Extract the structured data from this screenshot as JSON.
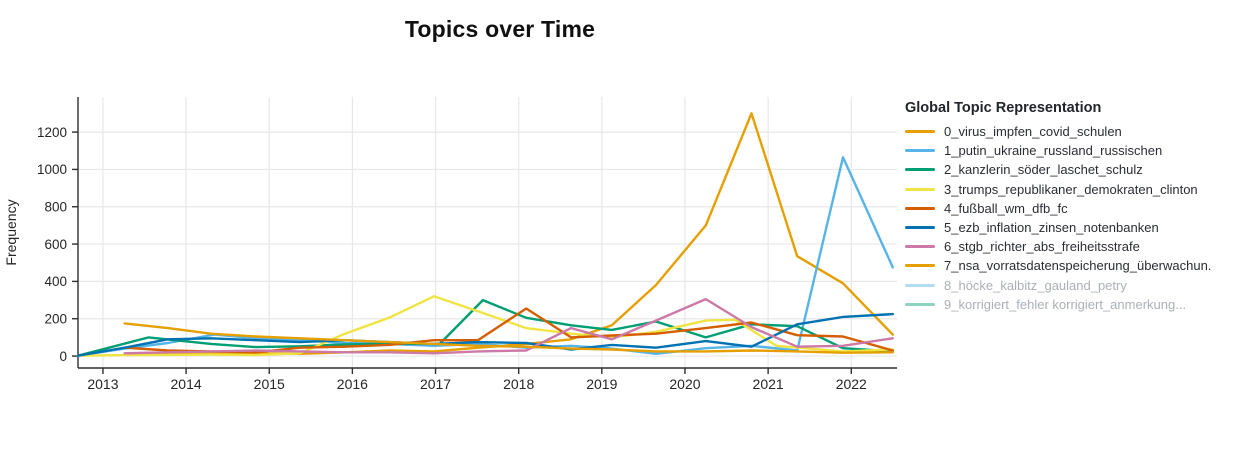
{
  "title": "Topics over Time",
  "legend": {
    "title": "Global Topic Representation"
  },
  "colors": {
    "grid": "#e7e7e7",
    "axis": "#2f2f2f",
    "tick_label": "#262626",
    "muted_text": "#abb0b6",
    "palette": [
      "#E69F00",
      "#56B4E9",
      "#009E73",
      "#F0E442",
      "#D55E00",
      "#0072B2",
      "#CC79A7"
    ]
  },
  "chart_data": {
    "type": "line",
    "title": "Topics over Time",
    "xlabel": "",
    "ylabel": "Frequency",
    "x_ticks": [
      2013,
      2014,
      2015,
      2016,
      2017,
      2018,
      2019,
      2020,
      2021,
      2022
    ],
    "y_ticks": [
      0,
      200,
      400,
      600,
      800,
      1000,
      1200
    ],
    "x_range": [
      2012.7,
      2022.55
    ],
    "y_range": [
      -64,
      1388
    ],
    "grid": true,
    "legend_position": "right",
    "series": [
      {
        "name": "0_virus_impfen_covid_schulen",
        "color": "#E69F00",
        "visible": true,
        "points": [
          [
            2013.26,
            10
          ],
          [
            2013.78,
            15
          ],
          [
            2014.3,
            20
          ],
          [
            2014.84,
            15
          ],
          [
            2015.37,
            12
          ],
          [
            2015.91,
            20
          ],
          [
            2016.44,
            30
          ],
          [
            2016.98,
            25
          ],
          [
            2017.51,
            45
          ],
          [
            2018.09,
            65
          ],
          [
            2018.63,
            90
          ],
          [
            2019.12,
            165
          ],
          [
            2019.65,
            380
          ],
          [
            2020.25,
            700
          ],
          [
            2020.8,
            1300
          ],
          [
            2021.35,
            535
          ],
          [
            2021.9,
            390
          ],
          [
            2022.5,
            115
          ]
        ]
      },
      {
        "name": "1_putin_ukraine_russland_russischen",
        "color": "#56B4E9",
        "visible": true,
        "points": [
          [
            2012.7,
            2
          ],
          [
            2013.26,
            40
          ],
          [
            2013.78,
            70
          ],
          [
            2014.34,
            115
          ],
          [
            2014.84,
            95
          ],
          [
            2015.37,
            85
          ],
          [
            2015.91,
            70
          ],
          [
            2016.44,
            65
          ],
          [
            2016.98,
            55
          ],
          [
            2017.51,
            65
          ],
          [
            2018.09,
            45
          ],
          [
            2018.63,
            55
          ],
          [
            2019.12,
            40
          ],
          [
            2019.65,
            12
          ],
          [
            2020.25,
            42
          ],
          [
            2020.8,
            55
          ],
          [
            2021.35,
            30
          ],
          [
            2021.9,
            1065
          ],
          [
            2022.5,
            475
          ]
        ]
      },
      {
        "name": "2_kanzlerin_söder_laschet_schulz",
        "color": "#009E73",
        "visible": true,
        "points": [
          [
            2012.7,
            2
          ],
          [
            2013.55,
            100
          ],
          [
            2014.3,
            65
          ],
          [
            2014.84,
            48
          ],
          [
            2015.37,
            52
          ],
          [
            2015.91,
            62
          ],
          [
            2016.44,
            66
          ],
          [
            2017.05,
            65
          ],
          [
            2017.57,
            300
          ],
          [
            2018.09,
            205
          ],
          [
            2018.63,
            165
          ],
          [
            2019.12,
            140
          ],
          [
            2019.65,
            185
          ],
          [
            2020.25,
            100
          ],
          [
            2020.8,
            170
          ],
          [
            2021.35,
            160
          ],
          [
            2021.9,
            42
          ],
          [
            2022.5,
            25
          ]
        ]
      },
      {
        "name": "3_trumps_republikaner_demokraten_clinton",
        "color": "#F0E442",
        "visible": true,
        "points": [
          [
            2012.7,
            2
          ],
          [
            2013.26,
            5
          ],
          [
            2013.78,
            6
          ],
          [
            2014.3,
            8
          ],
          [
            2014.84,
            5
          ],
          [
            2015.37,
            15
          ],
          [
            2015.91,
            120
          ],
          [
            2016.44,
            205
          ],
          [
            2016.98,
            320
          ],
          [
            2017.51,
            240
          ],
          [
            2018.09,
            150
          ],
          [
            2018.63,
            120
          ],
          [
            2019.12,
            100
          ],
          [
            2019.65,
            130
          ],
          [
            2020.25,
            190
          ],
          [
            2020.6,
            195
          ],
          [
            2021.1,
            55
          ],
          [
            2021.9,
            25
          ],
          [
            2022.5,
            35
          ]
        ]
      },
      {
        "name": "4_fußball_wm_dfb_fc",
        "color": "#D55E00",
        "visible": true,
        "points": [
          [
            2013.26,
            45
          ],
          [
            2013.78,
            30
          ],
          [
            2014.3,
            25
          ],
          [
            2014.84,
            20
          ],
          [
            2015.37,
            45
          ],
          [
            2015.91,
            50
          ],
          [
            2016.44,
            60
          ],
          [
            2016.98,
            85
          ],
          [
            2017.51,
            85
          ],
          [
            2018.09,
            255
          ],
          [
            2018.63,
            100
          ],
          [
            2019.12,
            110
          ],
          [
            2019.65,
            120
          ],
          [
            2020.25,
            150
          ],
          [
            2020.8,
            180
          ],
          [
            2021.35,
            112
          ],
          [
            2021.9,
            105
          ],
          [
            2022.5,
            30
          ]
        ]
      },
      {
        "name": "5_ezb_inflation_zinsen_notenbanken",
        "color": "#0072B2",
        "visible": true,
        "points": [
          [
            2012.7,
            2
          ],
          [
            2013.26,
            45
          ],
          [
            2013.78,
            90
          ],
          [
            2014.3,
            95
          ],
          [
            2014.84,
            85
          ],
          [
            2015.37,
            75
          ],
          [
            2015.91,
            85
          ],
          [
            2016.44,
            75
          ],
          [
            2016.98,
            65
          ],
          [
            2017.51,
            75
          ],
          [
            2018.09,
            70
          ],
          [
            2018.63,
            35
          ],
          [
            2019.12,
            60
          ],
          [
            2019.65,
            45
          ],
          [
            2020.25,
            80
          ],
          [
            2020.8,
            50
          ],
          [
            2021.35,
            170
          ],
          [
            2021.9,
            210
          ],
          [
            2022.5,
            225
          ]
        ]
      },
      {
        "name": "6_stgb_richter_abs_freiheitsstrafe",
        "color": "#CC79A7",
        "visible": true,
        "points": [
          [
            2013.26,
            15
          ],
          [
            2013.78,
            20
          ],
          [
            2014.3,
            25
          ],
          [
            2014.84,
            30
          ],
          [
            2015.37,
            25
          ],
          [
            2015.91,
            20
          ],
          [
            2016.44,
            20
          ],
          [
            2016.98,
            15
          ],
          [
            2017.51,
            25
          ],
          [
            2018.09,
            30
          ],
          [
            2018.63,
            150
          ],
          [
            2019.12,
            90
          ],
          [
            2019.65,
            190
          ],
          [
            2020.25,
            305
          ],
          [
            2020.8,
            155
          ],
          [
            2021.35,
            50
          ],
          [
            2021.9,
            55
          ],
          [
            2022.5,
            95
          ]
        ]
      },
      {
        "name": "7_nsa_vorratsdatenspeicherung_überwachun.",
        "color": "#E69F00",
        "visible": true,
        "points": [
          [
            2013.26,
            175
          ],
          [
            2013.78,
            150
          ],
          [
            2014.3,
            120
          ],
          [
            2014.84,
            105
          ],
          [
            2015.37,
            95
          ],
          [
            2015.91,
            85
          ],
          [
            2016.44,
            75
          ],
          [
            2016.98,
            65
          ],
          [
            2017.51,
            55
          ],
          [
            2018.09,
            50
          ],
          [
            2018.63,
            40
          ],
          [
            2019.12,
            35
          ],
          [
            2019.65,
            25
          ],
          [
            2020.25,
            25
          ],
          [
            2020.8,
            30
          ],
          [
            2021.35,
            25
          ],
          [
            2021.9,
            18
          ],
          [
            2022.5,
            20
          ]
        ]
      },
      {
        "name": "8_höcke_kalbitz_gauland_petry",
        "color": "#56B4E9",
        "visible": false,
        "points": []
      },
      {
        "name": "9_korrigiert_fehler korrigiert_anmerkung...",
        "color": "#009E73",
        "visible": false,
        "points": []
      }
    ]
  }
}
